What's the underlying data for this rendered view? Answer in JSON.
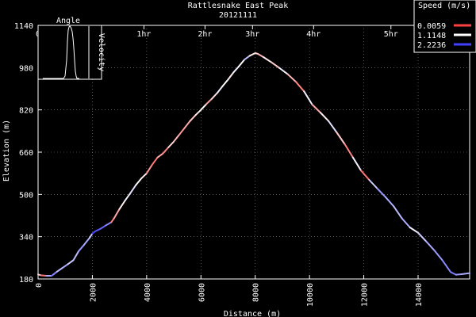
{
  "chart_data": {
    "type": "line",
    "title": "Rattlesnake East Peak",
    "subtitle": "20121111",
    "xlabel": "Distance (m)",
    "ylabel": "Elevation (m)",
    "xlim": [
      0,
      15900
    ],
    "ylim": [
      180,
      1140
    ],
    "x_ticks": [
      "0",
      "2000",
      "4000",
      "6000",
      "8000",
      "10000",
      "12000",
      "14000"
    ],
    "y_ticks": [
      "180",
      "340",
      "500",
      "660",
      "820",
      "980",
      "1140"
    ],
    "time_ticks": [
      {
        "label": "0",
        "x": 0
      },
      {
        "label": "1hr",
        "x": 3900
      },
      {
        "label": "2hr",
        "x": 6150
      },
      {
        "label": "3hr",
        "x": 7900
      },
      {
        "label": "4hr",
        "x": 10150
      },
      {
        "label": "5hr",
        "x": 13000
      }
    ],
    "legend": {
      "title": "Speed (m/s)",
      "placement": "top-right",
      "entries": [
        {
          "label": "0.0059",
          "color": "#ff4040"
        },
        {
          "label": "1.1148",
          "color": "#ffffff"
        },
        {
          "label": "2.2236",
          "color": "#4040ff"
        }
      ]
    },
    "inset": {
      "xlabel": "Angle",
      "ylabel": "Velocity"
    },
    "series": [
      {
        "points": [
          [
            0,
            197
          ],
          [
            100,
            194
          ],
          [
            300,
            192
          ],
          [
            500,
            192
          ],
          [
            550,
            196
          ],
          [
            700,
            208
          ],
          [
            900,
            222
          ],
          [
            1100,
            236
          ],
          [
            1300,
            251
          ],
          [
            1500,
            286
          ],
          [
            1700,
            310
          ],
          [
            1900,
            336
          ],
          [
            2000,
            352
          ],
          [
            2100,
            360
          ],
          [
            2300,
            370
          ],
          [
            2500,
            383
          ],
          [
            2700,
            395
          ],
          [
            2800,
            410
          ],
          [
            3000,
            445
          ],
          [
            3200,
            476
          ],
          [
            3400,
            505
          ],
          [
            3600,
            535
          ],
          [
            3800,
            560
          ],
          [
            4000,
            580
          ],
          [
            4200,
            612
          ],
          [
            4400,
            640
          ],
          [
            4600,
            655
          ],
          [
            4800,
            678
          ],
          [
            5000,
            700
          ],
          [
            5200,
            726
          ],
          [
            5400,
            752
          ],
          [
            5600,
            778
          ],
          [
            5800,
            800
          ],
          [
            6000,
            820
          ],
          [
            6200,
            842
          ],
          [
            6400,
            862
          ],
          [
            6600,
            884
          ],
          [
            6800,
            910
          ],
          [
            7000,
            935
          ],
          [
            7200,
            962
          ],
          [
            7400,
            985
          ],
          [
            7600,
            1010
          ],
          [
            7800,
            1025
          ],
          [
            8000,
            1035
          ],
          [
            8100,
            1032
          ],
          [
            8300,
            1020
          ],
          [
            8600,
            1000
          ],
          [
            8900,
            978
          ],
          [
            9200,
            955
          ],
          [
            9500,
            926
          ],
          [
            9800,
            890
          ],
          [
            10100,
            840
          ],
          [
            10400,
            810
          ],
          [
            10700,
            778
          ],
          [
            11000,
            735
          ],
          [
            11300,
            690
          ],
          [
            11600,
            640
          ],
          [
            11900,
            590
          ],
          [
            12200,
            555
          ],
          [
            12500,
            522
          ],
          [
            12800,
            490
          ],
          [
            13100,
            455
          ],
          [
            13400,
            410
          ],
          [
            13700,
            375
          ],
          [
            14000,
            355
          ],
          [
            14300,
            322
          ],
          [
            14600,
            288
          ],
          [
            14900,
            250
          ],
          [
            15200,
            206
          ],
          [
            15400,
            196
          ],
          [
            15600,
            198
          ],
          [
            15900,
            202
          ]
        ],
        "speed": [
          0.9,
          0.3,
          1.6,
          2.0,
          1.8,
          1.5,
          1.6,
          1.4,
          1.5,
          1.7,
          1.6,
          1.4,
          2.2,
          2.1,
          2.0,
          1.8,
          0.4,
          0.6,
          1.0,
          1.2,
          1.3,
          1.1,
          1.0,
          0.5,
          0.3,
          0.6,
          0.4,
          0.9,
          0.7,
          0.5,
          0.6,
          0.8,
          1.0,
          1.1,
          0.6,
          0.9,
          1.2,
          1.1,
          1.0,
          1.2,
          1.1,
          1.5,
          1.0,
          0.9,
          0.7,
          1.0,
          0.8,
          1.2,
          0.7,
          0.4,
          1.2,
          0.6,
          1.0,
          1.3,
          0.8,
          0.4,
          1.2,
          0.3,
          1.4,
          1.7,
          1.6,
          1.5,
          1.6,
          1.2,
          1.4,
          1.6,
          1.7,
          1.8,
          1.9,
          1.7,
          1.6
        ]
      }
    ]
  }
}
